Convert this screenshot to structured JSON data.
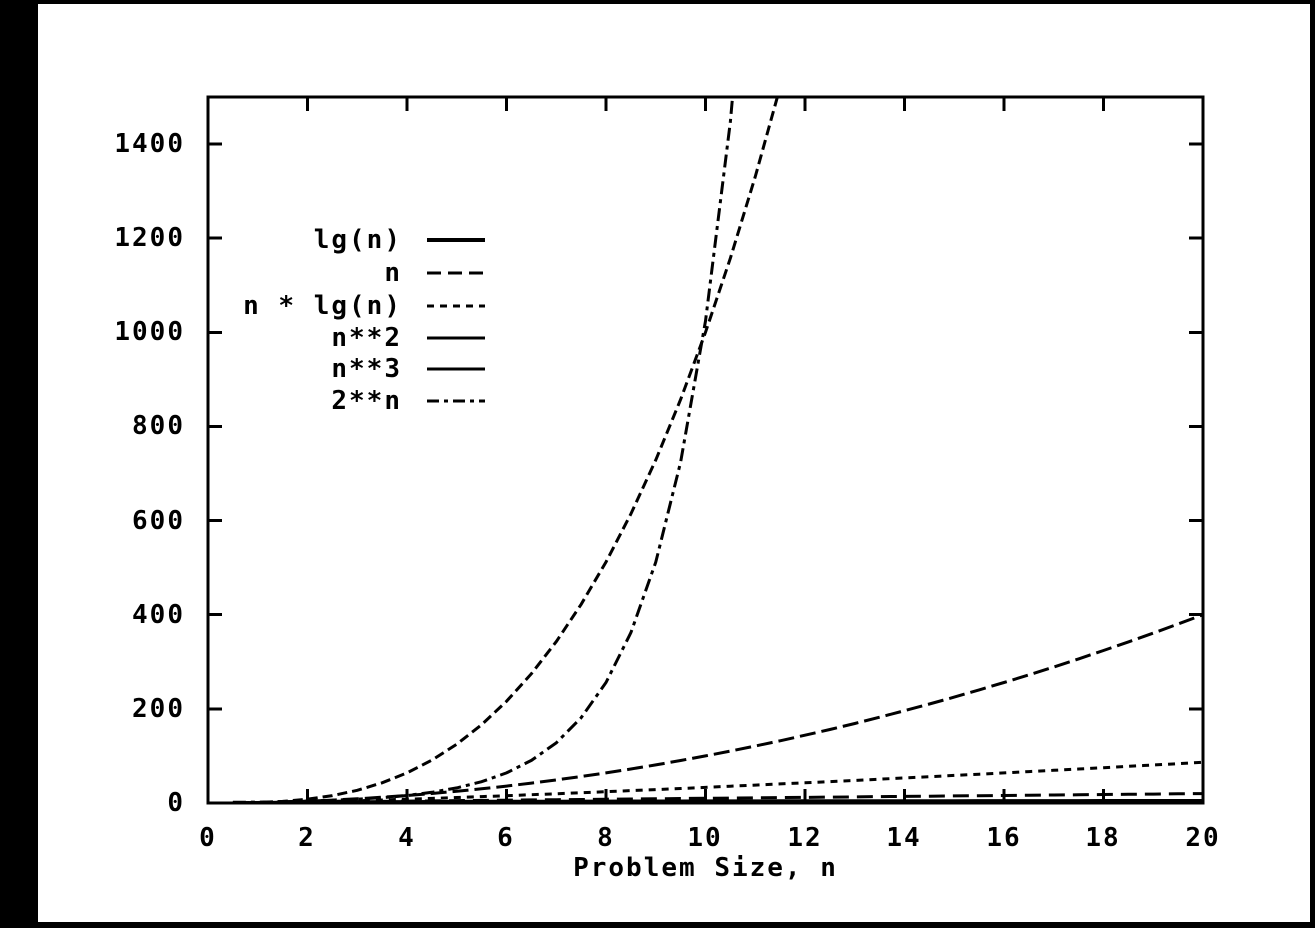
{
  "colors": {
    "background": "#000000",
    "panel": "#ffffff",
    "ink": "#000000"
  },
  "chart_data": {
    "type": "line",
    "title": "",
    "xlabel": "Problem Size, n",
    "ylabel": "",
    "xlim": [
      0,
      20
    ],
    "ylim": [
      0,
      1500
    ],
    "xticks": [
      0,
      2,
      4,
      6,
      8,
      10,
      12,
      14,
      16,
      18,
      20
    ],
    "yticks": [
      0,
      200,
      400,
      600,
      800,
      1000,
      1200,
      1400
    ],
    "grid": false,
    "legend_position": "top-left-inside",
    "x": [
      0.5,
      1,
      1.5,
      2,
      2.5,
      3,
      3.5,
      4,
      4.5,
      5,
      5.5,
      6,
      6.5,
      7,
      7.5,
      8,
      8.5,
      9,
      9.5,
      10,
      10.5,
      11,
      11.5,
      12,
      12.5,
      13,
      13.5,
      14,
      14.5,
      15,
      15.5,
      16,
      16.5,
      17,
      17.5,
      18,
      18.5,
      19,
      19.5,
      20
    ],
    "series": [
      {
        "name": "lg(n)",
        "style": "solid-bold",
        "values": [
          -1,
          0,
          0.58,
          1,
          1.32,
          1.58,
          1.81,
          2,
          2.17,
          2.32,
          2.46,
          2.58,
          2.7,
          2.81,
          2.91,
          3,
          3.09,
          3.17,
          3.25,
          3.32,
          3.39,
          3.46,
          3.52,
          3.58,
          3.64,
          3.7,
          3.75,
          3.81,
          3.86,
          3.91,
          3.95,
          4,
          4.04,
          4.09,
          4.13,
          4.17,
          4.21,
          4.25,
          4.29,
          4.32
        ]
      },
      {
        "name": "n",
        "style": "long-dash",
        "values": [
          0.5,
          1,
          1.5,
          2,
          2.5,
          3,
          3.5,
          4,
          4.5,
          5,
          5.5,
          6,
          6.5,
          7,
          7.5,
          8,
          8.5,
          9,
          9.5,
          10,
          10.5,
          11,
          11.5,
          12,
          12.5,
          13,
          13.5,
          14,
          14.5,
          15,
          15.5,
          16,
          16.5,
          17,
          17.5,
          18,
          18.5,
          19,
          19.5,
          20
        ]
      },
      {
        "name": "n * lg(n)",
        "style": "short-dash",
        "values": [
          -0.5,
          0,
          0.88,
          2,
          3.3,
          4.75,
          6.33,
          8,
          9.77,
          11.61,
          13.53,
          15.51,
          17.55,
          19.65,
          21.8,
          24,
          26.25,
          28.53,
          30.86,
          33.22,
          35.62,
          38.05,
          40.52,
          43.02,
          45.54,
          48.11,
          50.67,
          53.3,
          55.93,
          58.6,
          61.28,
          64,
          66.73,
          69.49,
          72.27,
          75.06,
          77.89,
          80.71,
          83.58,
          86.44
        ]
      },
      {
        "name": "n**2",
        "style": "solid",
        "values": [
          0.25,
          1,
          2.25,
          4,
          6.25,
          9,
          12.25,
          16,
          20.25,
          25,
          30.25,
          36,
          42.25,
          49,
          56.25,
          64,
          72.25,
          81,
          90.25,
          100,
          110.25,
          121,
          132.25,
          144,
          156.25,
          169,
          182.25,
          196,
          210.25,
          225,
          240.25,
          256,
          272.25,
          289,
          306.25,
          324,
          342.25,
          361,
          380.25,
          400
        ]
      },
      {
        "name": "n**3",
        "style": "solid",
        "values": [
          0.13,
          1,
          3.38,
          8,
          15.63,
          27,
          42.88,
          64,
          91.13,
          125,
          166.38,
          216,
          274.63,
          343,
          421.88,
          512,
          614.13,
          729,
          857.38,
          1000,
          1157.63,
          1331,
          1520.88,
          1728,
          1953.13,
          2197,
          2460.38,
          2744,
          3048.63,
          3375,
          3723.88,
          4096,
          4492.13,
          4913,
          5359.38,
          5832,
          6331.63,
          6859,
          7414.88,
          8000
        ]
      },
      {
        "name": "2**n",
        "style": "dash-dot",
        "values": [
          1.41,
          2,
          2.83,
          4,
          5.66,
          8,
          11.31,
          16,
          22.63,
          32,
          45.25,
          64,
          90.51,
          128,
          181.02,
          256,
          362.04,
          512,
          724.08,
          1024,
          1448.15,
          2048,
          2896,
          4096,
          5793,
          8192,
          11585,
          16384,
          23170,
          32768,
          46341,
          65536,
          92682,
          131072,
          185364,
          262144,
          370728,
          524288,
          741455,
          1048576
        ]
      }
    ]
  }
}
